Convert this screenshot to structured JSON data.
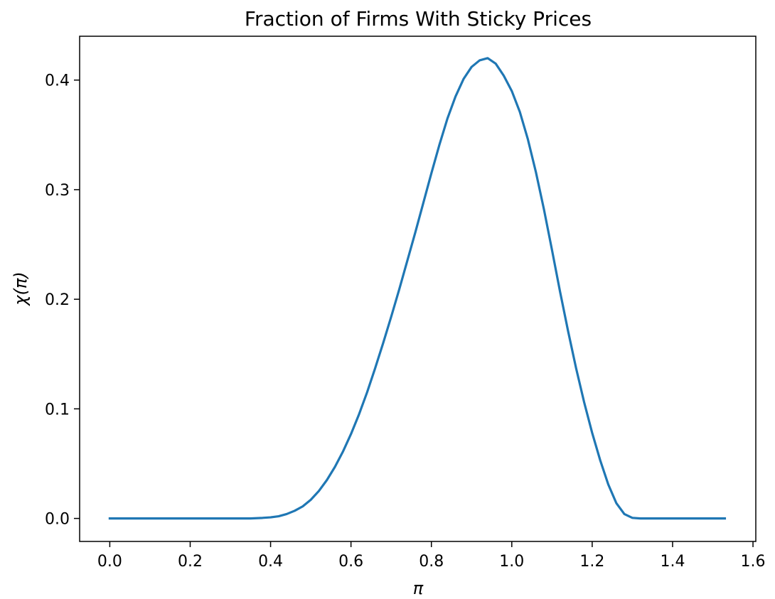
{
  "chart_data": {
    "type": "line",
    "title": "Fraction of Firms With Sticky Prices",
    "xlabel": "π",
    "ylabel": "χ(π)",
    "xlim": [
      -0.075,
      1.607
    ],
    "ylim": [
      -0.021,
      0.44
    ],
    "grid": false,
    "x_ticks": [
      0.0,
      0.2,
      0.4,
      0.6,
      0.8,
      1.0,
      1.2,
      1.4,
      1.6
    ],
    "x_tick_labels": [
      "0.0",
      "0.2",
      "0.4",
      "0.6",
      "0.8",
      "1.0",
      "1.2",
      "1.4",
      "1.6"
    ],
    "y_ticks": [
      0.0,
      0.1,
      0.2,
      0.3,
      0.4
    ],
    "y_tick_labels": [
      "0.0",
      "0.1",
      "0.2",
      "0.3",
      "0.4"
    ],
    "series": [
      {
        "color": "#1f77b4",
        "x": [
          0.0,
          0.05,
          0.1,
          0.15,
          0.2,
          0.25,
          0.3,
          0.35,
          0.38,
          0.4,
          0.42,
          0.44,
          0.46,
          0.48,
          0.5,
          0.52,
          0.54,
          0.56,
          0.58,
          0.6,
          0.62,
          0.64,
          0.66,
          0.68,
          0.7,
          0.72,
          0.74,
          0.76,
          0.78,
          0.8,
          0.82,
          0.84,
          0.86,
          0.88,
          0.9,
          0.92,
          0.94,
          0.96,
          0.98,
          1.0,
          1.02,
          1.04,
          1.06,
          1.08,
          1.1,
          1.12,
          1.14,
          1.16,
          1.18,
          1.2,
          1.22,
          1.24,
          1.26,
          1.28,
          1.3,
          1.32,
          1.34,
          1.36,
          1.38,
          1.4,
          1.45,
          1.5,
          1.53
        ],
        "y": [
          0.0,
          0.0,
          0.0,
          0.0,
          0.0,
          0.0,
          0.0,
          0.0,
          0.0005,
          0.001,
          0.002,
          0.004,
          0.007,
          0.011,
          0.017,
          0.025,
          0.035,
          0.047,
          0.061,
          0.077,
          0.095,
          0.115,
          0.137,
          0.16,
          0.184,
          0.209,
          0.235,
          0.261,
          0.288,
          0.315,
          0.341,
          0.365,
          0.385,
          0.401,
          0.412,
          0.418,
          0.42,
          0.415,
          0.404,
          0.39,
          0.371,
          0.346,
          0.316,
          0.282,
          0.245,
          0.207,
          0.171,
          0.137,
          0.106,
          0.078,
          0.053,
          0.031,
          0.014,
          0.004,
          0.0005,
          0.0,
          0.0,
          0.0,
          0.0,
          0.0,
          0.0,
          0.0,
          0.0
        ]
      }
    ]
  }
}
